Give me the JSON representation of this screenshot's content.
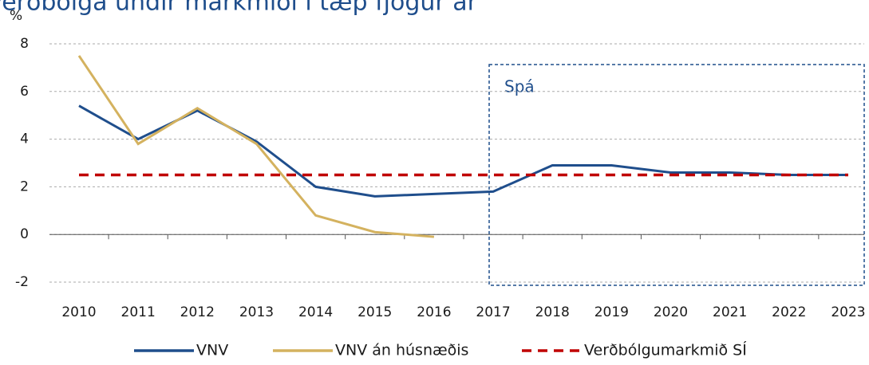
{
  "chart_data": {
    "type": "line",
    "title": "Verðbólga undir markmiði í tæp fjögur ár",
    "ylabel": "%",
    "categories": [
      "2010",
      "2011",
      "2012",
      "2013",
      "2014",
      "2015",
      "2016",
      "2017",
      "2018",
      "2019",
      "2020",
      "2021",
      "2022",
      "2023"
    ],
    "series": [
      {
        "name": "VNV",
        "color": "#1f4e8c",
        "dash": false,
        "values": [
          5.4,
          4.0,
          5.2,
          3.9,
          2.0,
          1.6,
          1.7,
          1.8,
          2.9,
          2.9,
          2.6,
          2.6,
          2.5,
          2.5
        ]
      },
      {
        "name": "VNV án húsnæðis",
        "color": "#d4b25f",
        "dash": false,
        "values": [
          7.5,
          3.8,
          5.3,
          3.8,
          0.8,
          0.1,
          -0.1,
          null,
          null,
          null,
          null,
          null,
          null,
          null
        ]
      },
      {
        "name": "Verðbólgumarkmið SÍ",
        "color": "#c00000",
        "dash": true,
        "values": [
          2.5,
          2.5,
          2.5,
          2.5,
          2.5,
          2.5,
          2.5,
          2.5,
          2.5,
          2.5,
          2.5,
          2.5,
          2.5,
          2.5
        ]
      }
    ],
    "annotation": "Spá",
    "ylim": [
      -2,
      8
    ],
    "yticks": [
      -2,
      0,
      2,
      4,
      6,
      8
    ],
    "grid": true
  }
}
